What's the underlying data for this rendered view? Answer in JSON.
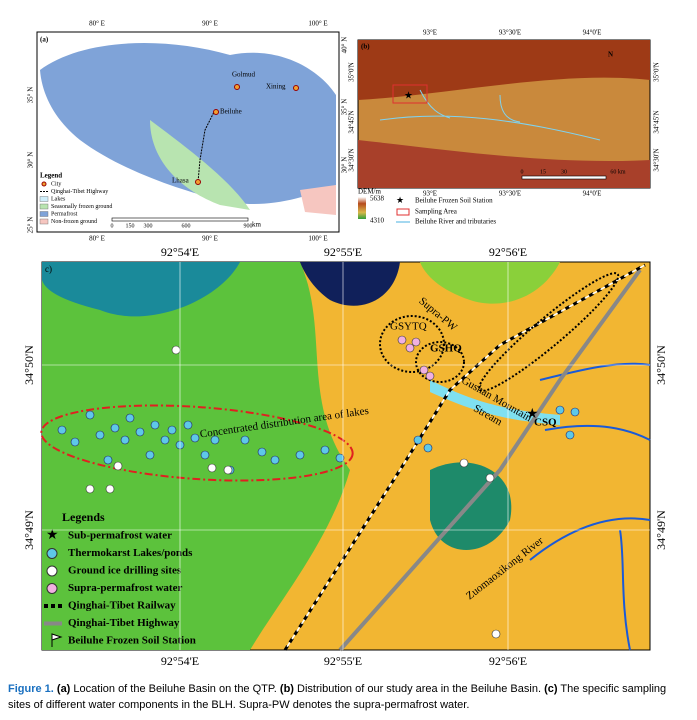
{
  "panel_a": {
    "label": "(a)",
    "lon_ticks": [
      "80° E",
      "90° E",
      "100° E"
    ],
    "lat_left": [
      "35° N",
      "30° N",
      "25° N"
    ],
    "lat_right": [
      "40° N",
      "35° N",
      "30° N"
    ],
    "cities": [
      "Golmud",
      "Xining",
      "Beiluhe",
      "Lhasa"
    ],
    "legend": {
      "title": "Legend",
      "items": [
        "City",
        "Qinghai-Tibet Highway",
        "Lakes",
        "Seasonally frozen ground",
        "Permafrost",
        "Non-frozen ground"
      ]
    },
    "scale": [
      "0",
      "150",
      "300",
      "600",
      "900"
    ],
    "scale_unit": "km"
  },
  "panel_b": {
    "label": "(b)",
    "lon_ticks": [
      "93°E",
      "93°30'E",
      "94°0'E"
    ],
    "lat_ticks": [
      "35°0'N",
      "34°45'N",
      "34°30'N"
    ],
    "north": "N",
    "scale": [
      "0",
      "15",
      "30",
      "60 km"
    ],
    "dem_title": "DEM/m",
    "dem_high": "5638",
    "dem_low": "4310",
    "legend": [
      "Beiluhe Frozen Soil Station",
      "Sampling Area",
      "Beiluhe River and tributaries"
    ]
  },
  "panel_c": {
    "label": "c)",
    "lon_ticks": [
      "92°54'E",
      "92°55'E",
      "92°56'E"
    ],
    "lat_ticks": [
      "34°50'N",
      "34°49'N"
    ],
    "annotations": {
      "supra": "Supra-PW",
      "gsytq": "GSYTQ",
      "gshq": "GSHQ",
      "csq": "CSQ",
      "stream1": "Gushan Mountain",
      "stream2": "Stream",
      "lakes": "Concentrated distribution area of lakes",
      "river": "Zuomaoxikong River"
    },
    "legend": {
      "title": "Legends",
      "items": [
        "Sub-permafrost water",
        "Thermokarst Lakes/ponds",
        "Ground ice drilling sites",
        "Supra-permafrost water",
        "Qinghai-Tibet Railway",
        "Qinghai-Tibet Highway",
        "Beiluhe Frozen Soil Station"
      ]
    }
  },
  "caption": {
    "figure": "Figure 1.",
    "a": "(a)",
    "a_text": "Location of the Beiluhe Basin on the QTP.",
    "b": "(b)",
    "b_text": "Distribution of our study area in the Beiluhe Basin.",
    "c": "(c)",
    "c_text": "The specific sampling",
    "line2": "sites of different water components in the BLH. Supra-PW denotes the supra-permafrost water."
  }
}
